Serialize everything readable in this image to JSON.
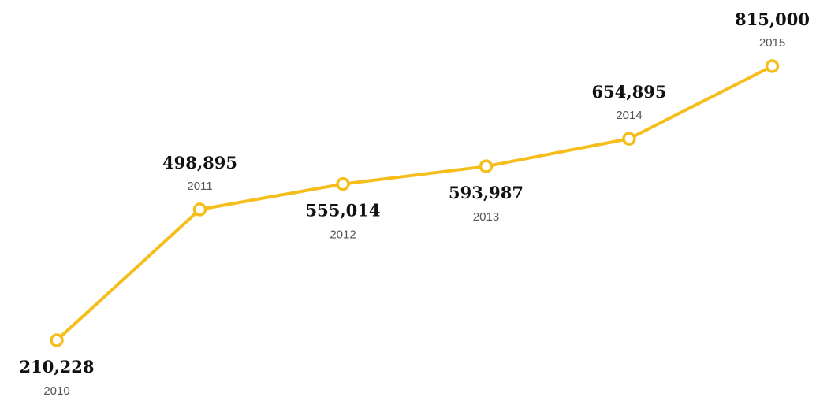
{
  "chart_data": {
    "type": "line",
    "title": "",
    "xlabel": "",
    "ylabel": "",
    "grid": false,
    "legend": false,
    "line_color": "#F5BE1B",
    "marker_fill": "#ffffff",
    "x": [
      "2010",
      "2011",
      "2012",
      "2013",
      "2014",
      "2015"
    ],
    "series": [
      {
        "values": [
          210228,
          498895,
          555014,
          593987,
          654895,
          815000
        ],
        "value_labels": [
          "210,228",
          "498,895",
          "555,014",
          "593,987",
          "654,895",
          "815,000"
        ],
        "label_position": [
          "below",
          "above",
          "below",
          "below",
          "above",
          "above"
        ]
      }
    ]
  }
}
